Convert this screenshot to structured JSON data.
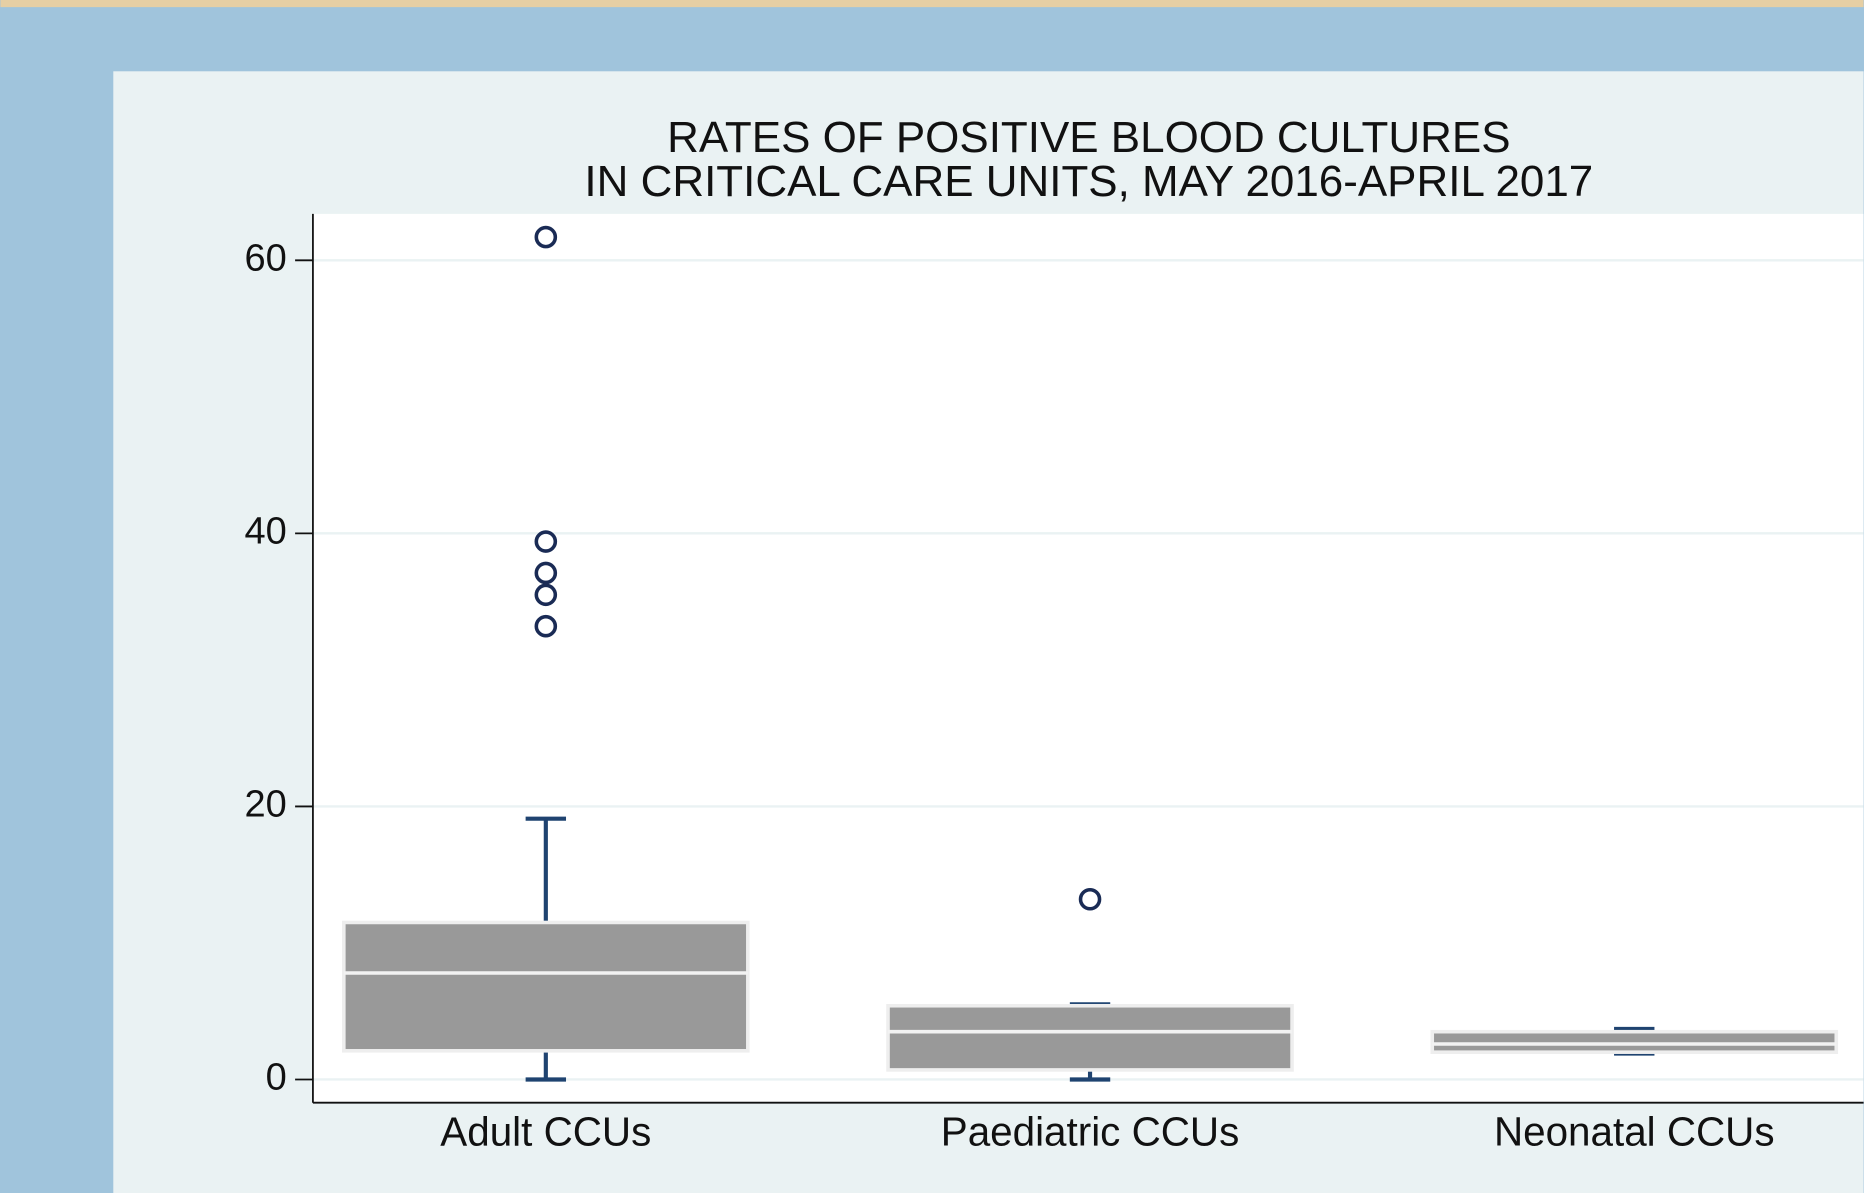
{
  "chart_data": {
    "type": "box",
    "title": [
      "RATES OF POSITIVE BLOOD CULTURES",
      "IN CRITICAL CARE UNITS, MAY 2016-APRIL 2017"
    ],
    "categories": [
      "Adult CCUs",
      "Paediatric CCUs",
      "Neonatal CCUs"
    ],
    "whisker_low": [
      0,
      0,
      1.9
    ],
    "q1": [
      2.1,
      0.7,
      2.0
    ],
    "median": [
      7.8,
      3.5,
      2.6
    ],
    "q3": [
      11.5,
      5.4,
      3.5
    ],
    "whisker_high": [
      19.1,
      5.5,
      3.7
    ],
    "outliers": [
      [
        61.7,
        39.4,
        37.1,
        35.5,
        33.2
      ],
      [
        13.2
      ],
      []
    ],
    "box_color": "#999999",
    "whisker_color": "#1f4370",
    "outlier_color": "#1a2b55",
    "ylim": [
      -1.7,
      63.4
    ],
    "yticks": [
      0,
      20,
      40,
      60
    ],
    "grid": true
  }
}
